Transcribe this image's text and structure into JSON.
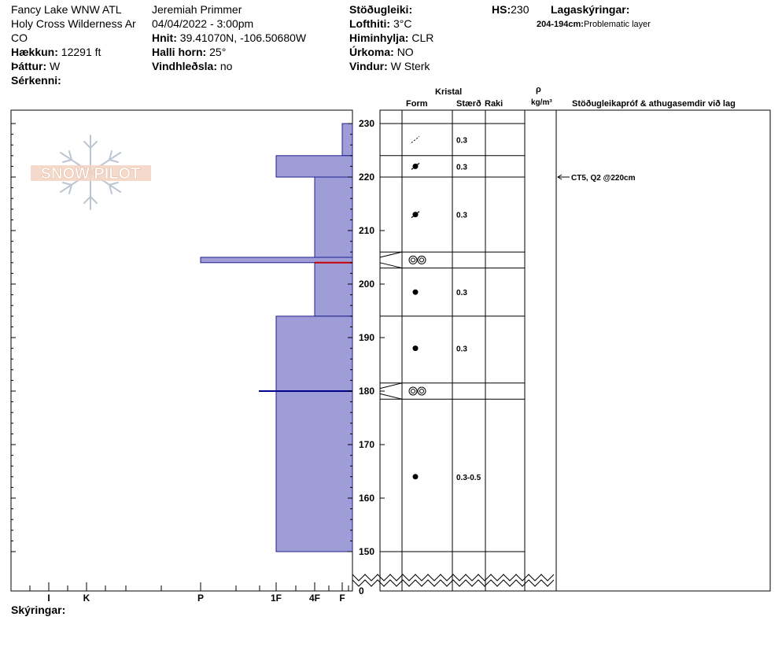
{
  "header": {
    "location": "Fancy Lake WNW ATL",
    "region": "Holy Cross Wilderness Ar",
    "state": "CO",
    "elevation_label": "Hækkun:",
    "elevation_value": "12291 ft",
    "aspect_label": "Þáttur:",
    "aspect_value": "W",
    "features_label": "Sérkenni:",
    "observer": "Jeremiah Primmer",
    "datetime": "04/04/2022 - 3:00pm",
    "coords_label": "Hnit:",
    "coords_value": "39.41070N, -106.50680W",
    "slope_label": "Halli horn:",
    "slope_value": "25°",
    "wind_loading_label": "Vindhleðsla:",
    "wind_loading_value": "no",
    "stability_label": "Stöðugleiki:",
    "air_temp_label": "Lofthiti:",
    "air_temp_value": "3°C",
    "sky_label": "Himinhylja:",
    "sky_value": "CLR",
    "precip_label": "Úrkoma:",
    "precip_value": "NO",
    "wind_label": "Vindur:",
    "wind_value": "W Sterk",
    "hs_label": "HS:",
    "hs_value": "230",
    "legend_label": "Lagaskýringar:",
    "legend_range": "204-194cm:",
    "legend_text": "Problematic layer"
  },
  "columns": {
    "crystal": "Kristal",
    "form": "Form",
    "size": "Stærð",
    "moisture": "Raki",
    "density_symbol": "ρ",
    "density_unit": "kg/m³",
    "tests": "Stöðugleikapróf & athugasemdir við lag"
  },
  "footer": {
    "notes_label": "Skýringar:"
  },
  "logo_text": "SNOW PILOT",
  "colors": {
    "hardness_fill": "#9e9dd8",
    "hardness_stroke": "#1f1f8f",
    "problem_line": "#cc0000",
    "test_line": "#00008b"
  },
  "chart_data": {
    "type": "snow_profile",
    "y_ticks": [
      150,
      160,
      170,
      180,
      190,
      200,
      210,
      220,
      230
    ],
    "y_zero_label": "0",
    "y_range": [
      150,
      230
    ],
    "hardness_scale": [
      "I",
      "K",
      "P",
      "1F",
      "4F",
      "F"
    ],
    "hardness_profile": [
      {
        "top": 230,
        "bottom": 224,
        "hardness": "F"
      },
      {
        "top": 224,
        "bottom": 220,
        "hardness": "1F"
      },
      {
        "top": 220,
        "bottom": 205,
        "hardness": "4F"
      },
      {
        "top": 205,
        "bottom": 204,
        "hardness": "P"
      },
      {
        "top": 204,
        "bottom": 194,
        "hardness": "4F"
      },
      {
        "top": 194,
        "bottom": 150,
        "hardness": "1F"
      }
    ],
    "layer_boundaries": [
      230,
      224,
      220,
      206,
      203,
      194,
      181.5,
      178.5,
      150
    ],
    "grains": [
      {
        "depth": 227,
        "form": "decomposing",
        "size": "0.3"
      },
      {
        "depth": 222,
        "form": "rounding",
        "size": "0.3"
      },
      {
        "depth": 213,
        "form": "rounding",
        "size": "0.3"
      },
      {
        "depth": 204.5,
        "form": "melt-freeze",
        "size": ""
      },
      {
        "depth": 198.5,
        "form": "rounded",
        "size": "0.3"
      },
      {
        "depth": 188,
        "form": "rounded",
        "size": "0.3"
      },
      {
        "depth": 180,
        "form": "melt-freeze",
        "size": ""
      },
      {
        "depth": 164,
        "form": "rounded",
        "size": "0.3-0.5"
      }
    ],
    "tests": [
      {
        "depth": 220,
        "text": "CT5, Q2 @220cm"
      }
    ],
    "problem_layer_depth": 204,
    "test_line_depth": 180
  }
}
